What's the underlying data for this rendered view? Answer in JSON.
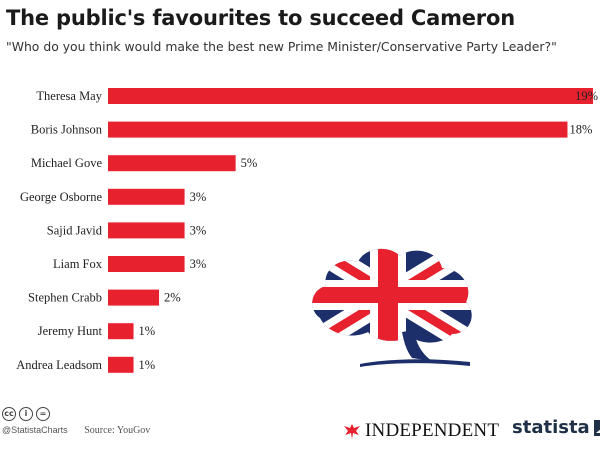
{
  "header": {
    "title": "The public's favourites to succeed Cameron",
    "subtitle": "\"Who do you think would make the best new Prime Minister/Conservative Party Leader?\""
  },
  "chart_data": {
    "type": "bar",
    "orientation": "horizontal",
    "categories": [
      "Theresa May",
      "Boris Johnson",
      "Michael Gove",
      "George Osborne",
      "Sajid Javid",
      "Liam Fox",
      "Stephen Crabb",
      "Jeremy Hunt",
      "Andrea Leadsom"
    ],
    "values": [
      19,
      18,
      5,
      3,
      3,
      3,
      2,
      1,
      1
    ],
    "value_labels": [
      "19%",
      "18%",
      "5%",
      "3%",
      "3%",
      "3%",
      "2%",
      "1%",
      "1%"
    ],
    "unit": "%",
    "xlim": [
      0,
      19
    ],
    "grid": false,
    "bar_color": "#e8212e"
  },
  "footer": {
    "handle": "@StatistaCharts",
    "source": "Source: YouGov",
    "publisher": "INDEPENDENT",
    "brand": "statista"
  },
  "icons": {
    "cc": "cc-icon",
    "by": "attribution-icon",
    "nd": "no-derivatives-icon",
    "eagle": "eagle-icon",
    "logo": "conservative-tree-logo-icon"
  },
  "colors": {
    "red": "#e8212e",
    "navy": "#1c2f6b",
    "brand_dark": "#1f3047"
  }
}
